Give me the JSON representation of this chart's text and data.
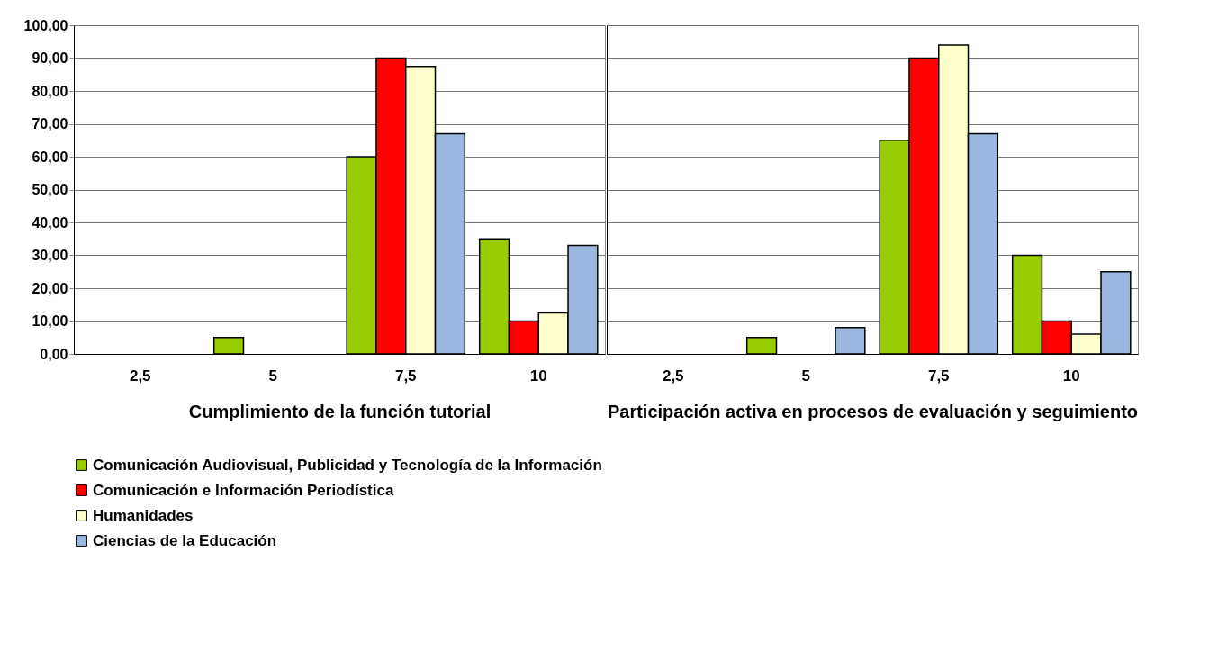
{
  "chart_data": [
    {
      "type": "bar",
      "xlabel": "Cumplimiento de la función tutorial",
      "categories": [
        "2,5",
        "5",
        "7,5",
        "10"
      ],
      "series": [
        {
          "name": "Comunicación Audiovisual, Publicidad y Tecnología de la Información",
          "color": "#99cc00",
          "values": [
            0,
            5,
            60,
            35
          ]
        },
        {
          "name": "Comunicación e Información Periodística",
          "color": "#ff0000",
          "values": [
            0,
            0,
            90,
            10
          ]
        },
        {
          "name": "Humanidades",
          "color": "#ffffcc",
          "values": [
            0,
            0,
            87.5,
            12.5
          ]
        },
        {
          "name": "Ciencias de la Educación",
          "color": "#9bb7e0",
          "values": [
            0,
            0,
            67,
            33
          ]
        }
      ],
      "ylim": [
        0,
        100
      ],
      "yticks": [
        {
          "value": 0,
          "label": "0,00"
        },
        {
          "value": 10,
          "label": "10,00"
        },
        {
          "value": 20,
          "label": "20,00"
        },
        {
          "value": 30,
          "label": "30,00"
        },
        {
          "value": 40,
          "label": "40,00"
        },
        {
          "value": 50,
          "label": "50,00"
        },
        {
          "value": 60,
          "label": "60,00"
        },
        {
          "value": 70,
          "label": "70,00"
        },
        {
          "value": 80,
          "label": "80,00"
        },
        {
          "value": 90,
          "label": "90,00"
        },
        {
          "value": 100,
          "label": "100,00"
        }
      ],
      "grid": "y",
      "legend": "bottom"
    },
    {
      "type": "bar",
      "xlabel": "Participación activa en procesos de evaluación y seguimiento",
      "categories": [
        "2,5",
        "5",
        "7,5",
        "10"
      ],
      "series": [
        {
          "name": "Comunicación Audiovisual, Publicidad y Tecnología de la Información",
          "color": "#99cc00",
          "values": [
            0,
            5,
            65,
            30
          ]
        },
        {
          "name": "Comunicación e Información Periodística",
          "color": "#ff0000",
          "values": [
            0,
            0,
            90,
            10
          ]
        },
        {
          "name": "Humanidades",
          "color": "#ffffcc",
          "values": [
            0,
            0,
            94,
            6
          ]
        },
        {
          "name": "Ciencias de la Educación",
          "color": "#9bb7e0",
          "values": [
            0,
            8,
            67,
            25
          ]
        }
      ],
      "ylim": [
        0,
        100
      ],
      "yticks": [
        0,
        10,
        20,
        30,
        40,
        50,
        60,
        70,
        80,
        90,
        100
      ],
      "grid": "y",
      "legend": "bottom",
      "tick_labels": "x"
    }
  ]
}
